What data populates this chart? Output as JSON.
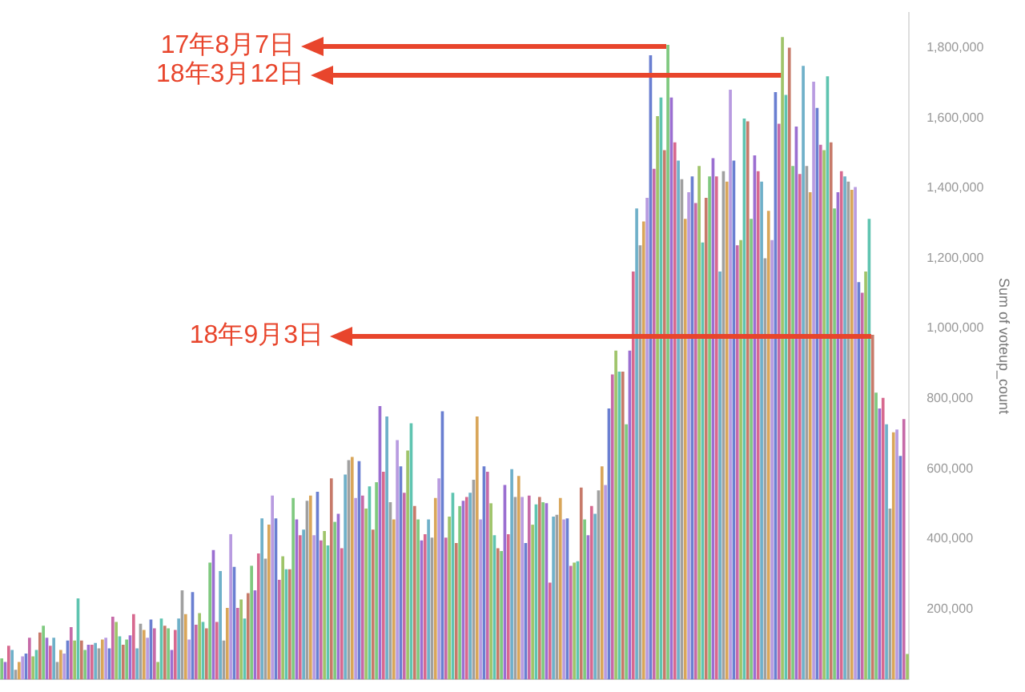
{
  "chart_data": {
    "type": "bar",
    "ylabel": "Sum of voteup_count",
    "categories": [
      null,
      null,
      null,
      null,
      null,
      null,
      null,
      null,
      null,
      null,
      null,
      null,
      null,
      null,
      null,
      null,
      null,
      null,
      null,
      null,
      null,
      null,
      null,
      null,
      null,
      null,
      null,
      null,
      null,
      null,
      null,
      null,
      null,
      null,
      null,
      null,
      null,
      null,
      null,
      null,
      null,
      null,
      null,
      null,
      null,
      null,
      null,
      null,
      null,
      null,
      null,
      null,
      null,
      null,
      null,
      null,
      null,
      null,
      null,
      null,
      null,
      null,
      null,
      null,
      null,
      null,
      null,
      null,
      null,
      null,
      null,
      null,
      null,
      null,
      null,
      null,
      null,
      null,
      null,
      null,
      null,
      null,
      null,
      null,
      null,
      null,
      null,
      null,
      null,
      null,
      null,
      null,
      null,
      null,
      null,
      null,
      null,
      null,
      null,
      null,
      null,
      null,
      null,
      null,
      null,
      null,
      null,
      null,
      null,
      null,
      null,
      null,
      null,
      null,
      null,
      null,
      null,
      null,
      null,
      null,
      null,
      null,
      null,
      null,
      null,
      null,
      null,
      null,
      null,
      null,
      null,
      null,
      null,
      null,
      null,
      null,
      null,
      null,
      null,
      null,
      null,
      null,
      null,
      null,
      null,
      null,
      null,
      null,
      null,
      null,
      null,
      null,
      null,
      null,
      null,
      null,
      null,
      null,
      null,
      null,
      null,
      null,
      null,
      null,
      null,
      null,
      null,
      null,
      null,
      null,
      null,
      null,
      null,
      null,
      null,
      null,
      null,
      null,
      null,
      null,
      null,
      null,
      null,
      null,
      null,
      null,
      null,
      null,
      null,
      null,
      null,
      null,
      null,
      null,
      null,
      null,
      null,
      null,
      null,
      null,
      null,
      null,
      null,
      null,
      null,
      null,
      null,
      null,
      null,
      null,
      null,
      null,
      null,
      null,
      null,
      null,
      null,
      null,
      null,
      null,
      null,
      null,
      null,
      null,
      null,
      null,
      null,
      null,
      null,
      null,
      null,
      null,
      null,
      null,
      null,
      null,
      null,
      null,
      null,
      null,
      null,
      null,
      null,
      null,
      null,
      null,
      null,
      null,
      null,
      null,
      null,
      null,
      null,
      null,
      null,
      null,
      null,
      null,
      null,
      null,
      null,
      null
    ],
    "values": [
      60000,
      50000,
      96000,
      84000,
      28000,
      50000,
      66000,
      74000,
      119000,
      66000,
      84000,
      134000,
      153000,
      119000,
      96000,
      119000,
      50000,
      84000,
      74000,
      111000,
      149000,
      111000,
      231000,
      111000,
      84000,
      99000,
      99000,
      104000,
      89000,
      114000,
      119000,
      89000,
      179000,
      164000,
      123000,
      99000,
      114000,
      126000,
      186000,
      89000,
      159000,
      141000,
      119000,
      171000,
      146000,
      50000,
      174000,
      153000,
      146000,
      84000,
      141000,
      174000,
      254000,
      186000,
      114000,
      249000,
      156000,
      189000,
      164000,
      146000,
      333000,
      369000,
      164000,
      309000,
      111000,
      204000,
      414000,
      321000,
      204000,
      228000,
      174000,
      246000,
      324000,
      254000,
      359000,
      459000,
      344000,
      441000,
      524000,
      459000,
      284000,
      351000,
      314000,
      314000,
      517000,
      456000,
      411000,
      427000,
      509000,
      524000,
      411000,
      535000,
      396000,
      423000,
      382000,
      573000,
      449000,
      472000,
      374000,
      584000,
      625000,
      634000,
      517000,
      622000,
      524000,
      487000,
      550000,
      427000,
      562000,
      779000,
      592000,
      749000,
      505000,
      456000,
      682000,
      607000,
      532000,
      652000,
      730000,
      494000,
      456000,
      396000,
      414000,
      456000,
      404000,
      517000,
      573000,
      764000,
      404000,
      464000,
      532000,
      389000,
      494000,
      509000,
      520000,
      532000,
      569000,
      749000,
      456000,
      607000,
      592000,
      502000,
      411000,
      374000,
      366000,
      554000,
      414000,
      599000,
      520000,
      580000,
      520000,
      389000,
      524000,
      441000,
      499000,
      520000,
      505000,
      502000,
      276000,
      464000,
      469000,
      517000,
      456000,
      459000,
      324000,
      333000,
      337000,
      547000,
      456000,
      411000,
      494000,
      472000,
      539000,
      607000,
      554000,
      772000,
      869000,
      937000,
      877000,
      877000,
      727000,
      937000,
      1162000,
      1342000,
      1237000,
      1305000,
      1372000,
      1778000,
      1455000,
      1605000,
      1658000,
      1508000,
      1808000,
      1658000,
      1530000,
      1478000,
      1425000,
      1312000,
      1388000,
      1433000,
      1357000,
      1463000,
      1245000,
      1372000,
      1433000,
      1485000,
      1433000,
      1162000,
      1448000,
      1418000,
      1680000,
      1478000,
      1237000,
      1252000,
      1598000,
      1590000,
      1312000,
      1493000,
      1448000,
      1418000,
      1200000,
      1335000,
      1252000,
      1673000,
      1583000,
      1830000,
      1665000,
      1800000,
      1463000,
      1575000,
      1440000,
      1748000,
      1463000,
      1388000,
      1703000,
      1628000,
      1523000,
      1508000,
      1718000,
      1530000,
      1342000,
      1388000,
      1448000,
      1433000,
      1418000,
      1395000,
      1403000,
      1132000,
      1102000,
      1162000,
      1312000,
      982000,
      817000,
      772000,
      802000,
      727000,
      487000,
      704000,
      712000,
      637000,
      742000,
      73000
    ],
    "colors": [
      "#7fc97f",
      "#9b6fd1",
      "#d7698f",
      "#6fb0c9",
      "#a0a0a0",
      "#d9a65a",
      "#b89be0",
      "#6a7fd1",
      "#c66aa8",
      "#9fc46a",
      "#5fc4b0",
      "#c77a6a",
      "#7fc97f",
      "#9b6fd1",
      "#d7698f",
      "#6fb0c9",
      "#a0a0a0",
      "#d9a65a",
      "#b89be0",
      "#6a7fd1",
      "#c66aa8",
      "#9fc46a",
      "#5fc4b0",
      "#c77a6a",
      "#7fc97f",
      "#9b6fd1",
      "#d7698f",
      "#6fb0c9",
      "#a0a0a0",
      "#d9a65a",
      "#b89be0",
      "#6a7fd1",
      "#c66aa8",
      "#9fc46a",
      "#5fc4b0",
      "#c77a6a",
      "#7fc97f",
      "#9b6fd1",
      "#d7698f",
      "#6fb0c9",
      "#a0a0a0",
      "#d9a65a",
      "#b89be0",
      "#6a7fd1",
      "#c66aa8",
      "#9fc46a",
      "#5fc4b0",
      "#c77a6a",
      "#7fc97f",
      "#9b6fd1",
      "#d7698f",
      "#6fb0c9",
      "#a0a0a0",
      "#d9a65a",
      "#b89be0",
      "#6a7fd1",
      "#c66aa8",
      "#9fc46a",
      "#5fc4b0",
      "#c77a6a",
      "#7fc97f",
      "#9b6fd1",
      "#d7698f",
      "#6fb0c9",
      "#a0a0a0",
      "#d9a65a",
      "#b89be0",
      "#6a7fd1",
      "#c66aa8",
      "#9fc46a",
      "#5fc4b0",
      "#c77a6a",
      "#7fc97f",
      "#9b6fd1",
      "#d7698f",
      "#6fb0c9",
      "#a0a0a0",
      "#d9a65a",
      "#b89be0",
      "#6a7fd1",
      "#c66aa8",
      "#9fc46a",
      "#5fc4b0",
      "#c77a6a",
      "#7fc97f",
      "#9b6fd1",
      "#d7698f",
      "#6fb0c9",
      "#a0a0a0",
      "#d9a65a",
      "#b89be0",
      "#6a7fd1",
      "#c66aa8",
      "#9fc46a",
      "#5fc4b0",
      "#c77a6a",
      "#7fc97f",
      "#9b6fd1",
      "#d7698f",
      "#6fb0c9",
      "#a0a0a0",
      "#d9a65a",
      "#b89be0",
      "#6a7fd1",
      "#c66aa8",
      "#9fc46a",
      "#5fc4b0",
      "#c77a6a",
      "#7fc97f",
      "#9b6fd1",
      "#d7698f",
      "#6fb0c9",
      "#a0a0a0",
      "#d9a65a",
      "#b89be0",
      "#6a7fd1",
      "#c66aa8",
      "#9fc46a",
      "#5fc4b0",
      "#c77a6a",
      "#7fc97f",
      "#9b6fd1",
      "#d7698f",
      "#6fb0c9",
      "#a0a0a0",
      "#d9a65a",
      "#b89be0",
      "#6a7fd1",
      "#c66aa8",
      "#9fc46a",
      "#5fc4b0",
      "#c77a6a",
      "#7fc97f",
      "#9b6fd1",
      "#d7698f",
      "#6fb0c9",
      "#a0a0a0",
      "#d9a65a",
      "#b89be0",
      "#6a7fd1",
      "#c66aa8",
      "#9fc46a",
      "#5fc4b0",
      "#c77a6a",
      "#7fc97f",
      "#9b6fd1",
      "#d7698f",
      "#6fb0c9",
      "#a0a0a0",
      "#d9a65a",
      "#b89be0",
      "#6a7fd1",
      "#c66aa8",
      "#9fc46a",
      "#5fc4b0",
      "#c77a6a",
      "#7fc97f",
      "#9b6fd1",
      "#d7698f",
      "#6fb0c9",
      "#a0a0a0",
      "#d9a65a",
      "#b89be0",
      "#6a7fd1",
      "#c66aa8",
      "#9fc46a",
      "#5fc4b0",
      "#c77a6a",
      "#7fc97f",
      "#9b6fd1",
      "#d7698f",
      "#6fb0c9",
      "#a0a0a0",
      "#d9a65a",
      "#b89be0",
      "#6a7fd1",
      "#c66aa8",
      "#9fc46a",
      "#5fc4b0",
      "#c77a6a",
      "#7fc97f",
      "#9b6fd1",
      "#d7698f",
      "#6fb0c9",
      "#a0a0a0",
      "#d9a65a",
      "#b89be0",
      "#6a7fd1",
      "#c66aa8",
      "#9fc46a",
      "#5fc4b0",
      "#c77a6a",
      "#7fc97f",
      "#9b6fd1",
      "#d7698f",
      "#6fb0c9",
      "#a0a0a0",
      "#d9a65a",
      "#b89be0",
      "#6a7fd1",
      "#c66aa8",
      "#9fc46a",
      "#5fc4b0",
      "#c77a6a",
      "#7fc97f",
      "#9b6fd1",
      "#d7698f",
      "#6fb0c9",
      "#a0a0a0",
      "#d9a65a",
      "#b89be0",
      "#6a7fd1",
      "#c66aa8",
      "#9fc46a",
      "#5fc4b0",
      "#c77a6a",
      "#7fc97f",
      "#9b6fd1",
      "#d7698f",
      "#6fb0c9",
      "#a0a0a0",
      "#d9a65a",
      "#b89be0",
      "#6a7fd1",
      "#c66aa8",
      "#9fc46a",
      "#5fc4b0",
      "#c77a6a",
      "#7fc97f",
      "#9b6fd1",
      "#d7698f",
      "#6fb0c9",
      "#a0a0a0",
      "#d9a65a",
      "#b89be0",
      "#6a7fd1",
      "#c66aa8",
      "#9fc46a",
      "#5fc4b0",
      "#c77a6a",
      "#7fc97f",
      "#9b6fd1",
      "#d7698f",
      "#6fb0c9",
      "#a0a0a0",
      "#d9a65a",
      "#b89be0",
      "#6a7fd1",
      "#c66aa8",
      "#9fc46a",
      "#5fc4b0",
      "#c77a6a",
      "#7fc97f",
      "#9b6fd1",
      "#d7698f",
      "#6fb0c9",
      "#a0a0a0",
      "#d9a65a",
      "#b89be0",
      "#6a7fd1",
      "#c66aa8",
      "#9fc46a"
    ],
    "ylim": [
      0,
      1900000
    ],
    "yticks": [
      {
        "value": 200000,
        "label": "200,000"
      },
      {
        "value": 400000,
        "label": "400,000"
      },
      {
        "value": 600000,
        "label": "600,000"
      },
      {
        "value": 800000,
        "label": "800,000"
      },
      {
        "value": 1000000,
        "label": "1,000,000"
      },
      {
        "value": 1200000,
        "label": "1,200,000"
      },
      {
        "value": 1400000,
        "label": "1,400,000"
      },
      {
        "value": 1600000,
        "label": "1,600,000"
      },
      {
        "value": 1800000,
        "label": "1,800,000"
      }
    ],
    "annotations": [
      "17年8月7日",
      "18年3月12日",
      "18年9月3日"
    ],
    "legend": false
  }
}
